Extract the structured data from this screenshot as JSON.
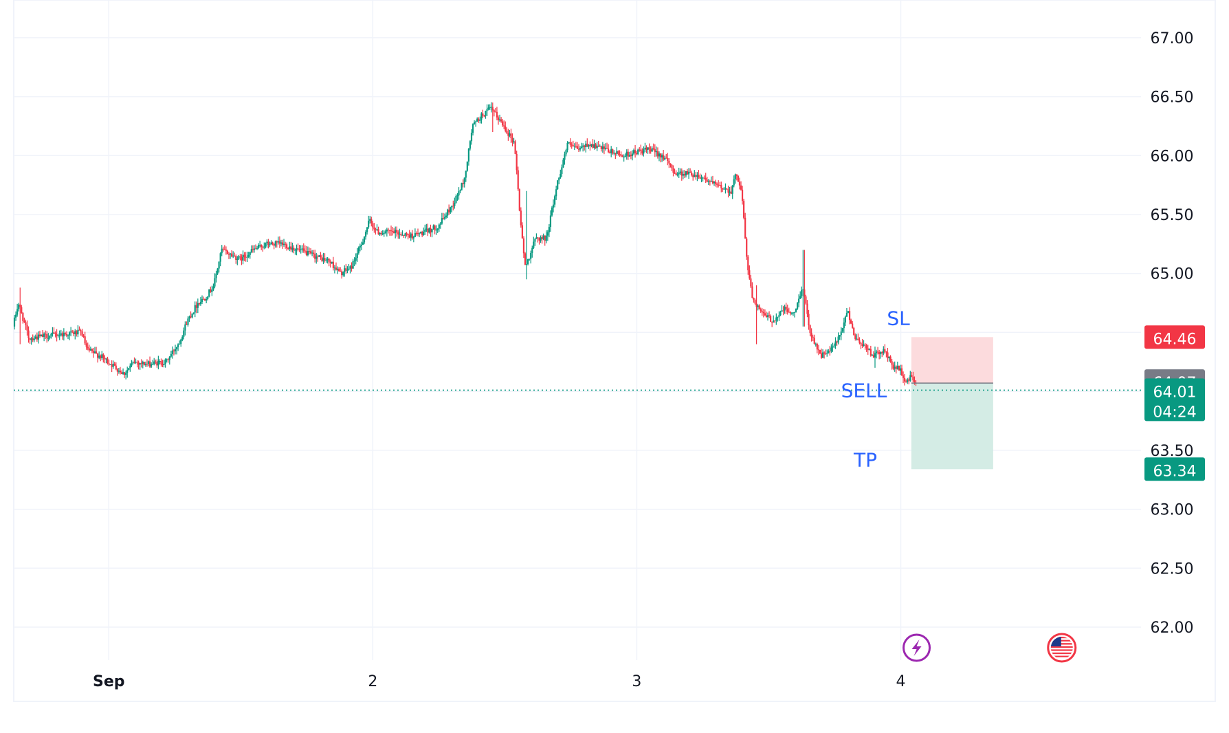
{
  "chart_data": {
    "type": "candlestick",
    "title": "",
    "xlabel": "",
    "ylabel": "",
    "x_ticks": [
      {
        "label": "Sep",
        "bold": true,
        "t": 0.0
      },
      {
        "label": "2",
        "bold": false,
        "t": 1.0
      },
      {
        "label": "3",
        "bold": false,
        "t": 2.0
      },
      {
        "label": "4",
        "bold": false,
        "t": 3.0
      }
    ],
    "xlim": [
      -0.36,
      3.91
    ],
    "ylim": [
      61.72,
      67.32
    ],
    "y_ticks": [
      "62.00",
      "62.50",
      "63.00",
      "63.50",
      "64.00",
      "64.50",
      "65.00",
      "65.50",
      "66.00",
      "66.50",
      "67.00"
    ],
    "y_tick_values": [
      62.0,
      62.5,
      63.0,
      63.5,
      64.0,
      64.5,
      65.0,
      65.5,
      66.0,
      66.5,
      67.0
    ],
    "y_axis_labels_shown": [
      "62.00",
      "62.50",
      "63.00",
      "63.50",
      "65.00",
      "65.50",
      "66.00",
      "66.50",
      "67.00"
    ],
    "grid": true,
    "price_path": [
      [
        -0.36,
        64.55
      ],
      [
        -0.34,
        64.75
      ],
      [
        -0.3,
        64.45
      ],
      [
        -0.2,
        64.48
      ],
      [
        -0.1,
        64.5
      ],
      [
        -0.08,
        64.35
      ],
      [
        -0.03,
        64.3
      ],
      [
        0.03,
        64.2
      ],
      [
        0.06,
        64.15
      ],
      [
        0.1,
        64.25
      ],
      [
        0.15,
        64.23
      ],
      [
        0.22,
        64.25
      ],
      [
        0.27,
        64.42
      ],
      [
        0.3,
        64.6
      ],
      [
        0.34,
        64.75
      ],
      [
        0.37,
        64.8
      ],
      [
        0.4,
        64.9
      ],
      [
        0.43,
        65.2
      ],
      [
        0.5,
        65.12
      ],
      [
        0.55,
        65.2
      ],
      [
        0.6,
        65.25
      ],
      [
        0.66,
        65.25
      ],
      [
        0.72,
        65.2
      ],
      [
        0.78,
        65.15
      ],
      [
        0.84,
        65.1
      ],
      [
        0.88,
        65.0
      ],
      [
        0.92,
        65.05
      ],
      [
        0.96,
        65.25
      ],
      [
        0.99,
        65.45
      ],
      [
        1.02,
        65.35
      ],
      [
        1.08,
        65.35
      ],
      [
        1.15,
        65.32
      ],
      [
        1.2,
        65.35
      ],
      [
        1.25,
        65.4
      ],
      [
        1.31,
        65.6
      ],
      [
        1.35,
        65.8
      ],
      [
        1.38,
        66.25
      ],
      [
        1.42,
        66.35
      ],
      [
        1.45,
        66.4
      ],
      [
        1.5,
        66.25
      ],
      [
        1.54,
        66.1
      ],
      [
        1.56,
        65.5
      ],
      [
        1.58,
        65.05
      ],
      [
        1.62,
        65.3
      ],
      [
        1.66,
        65.3
      ],
      [
        1.7,
        65.75
      ],
      [
        1.74,
        66.1
      ],
      [
        1.78,
        66.05
      ],
      [
        1.82,
        66.1
      ],
      [
        1.88,
        66.05
      ],
      [
        1.95,
        66.0
      ],
      [
        2.0,
        66.03
      ],
      [
        2.05,
        66.05
      ],
      [
        2.1,
        66.0
      ],
      [
        2.15,
        65.85
      ],
      [
        2.2,
        65.85
      ],
      [
        2.25,
        65.82
      ],
      [
        2.3,
        65.75
      ],
      [
        2.36,
        65.7
      ],
      [
        2.38,
        65.85
      ],
      [
        2.4,
        65.7
      ],
      [
        2.42,
        65.1
      ],
      [
        2.44,
        64.8
      ],
      [
        2.48,
        64.65
      ],
      [
        2.52,
        64.6
      ],
      [
        2.56,
        64.7
      ],
      [
        2.6,
        64.65
      ],
      [
        2.63,
        64.9
      ],
      [
        2.66,
        64.5
      ],
      [
        2.7,
        64.3
      ],
      [
        2.74,
        64.35
      ],
      [
        2.78,
        64.5
      ],
      [
        2.8,
        64.7
      ],
      [
        2.83,
        64.45
      ],
      [
        2.86,
        64.4
      ],
      [
        2.9,
        64.3
      ],
      [
        2.94,
        64.35
      ],
      [
        2.97,
        64.22
      ],
      [
        3.0,
        64.18
      ],
      [
        3.02,
        64.08
      ],
      [
        3.04,
        64.12
      ],
      [
        3.06,
        64.07
      ]
    ],
    "spikes": [
      {
        "t": -0.34,
        "high": 64.88,
        "low": 64.4
      },
      {
        "t": 1.58,
        "high": 65.7,
        "low": 64.95
      },
      {
        "t": 1.45,
        "high": 66.45,
        "low": 66.2
      },
      {
        "t": 2.63,
        "high": 65.2,
        "low": 64.55
      },
      {
        "t": 2.45,
        "high": 64.9,
        "low": 64.4
      },
      {
        "t": 2.9,
        "high": 64.38,
        "low": 64.2
      }
    ],
    "last_price": "64.01",
    "countdown": "04:24",
    "current_price": 64.01,
    "position": {
      "entry": 64.07,
      "stop_loss": 64.46,
      "take_profit": 63.34,
      "t_start": 3.04,
      "t_end": 3.35,
      "entry_label": "64.07",
      "stop_label": "64.46",
      "target_label": "63.34"
    },
    "annotations": {
      "sl": "SL",
      "sell": "SELL",
      "tp": "TP"
    },
    "colors": {
      "up": "#089981",
      "down": "#f23645",
      "grid": "#f0f3fa",
      "axis_text": "#131722",
      "annotation_text": "#2962ff",
      "stop_zone": "#fbd2d5",
      "profit_zone": "#cde9e1",
      "entry_badge": "#787b86",
      "last_price_line": "#089981",
      "event_icon": "#9c27b0"
    },
    "event_markers": [
      {
        "icon": "lightning-icon",
        "t": 3.06
      },
      {
        "icon": "us-flag-icon",
        "t": 3.61
      }
    ]
  }
}
